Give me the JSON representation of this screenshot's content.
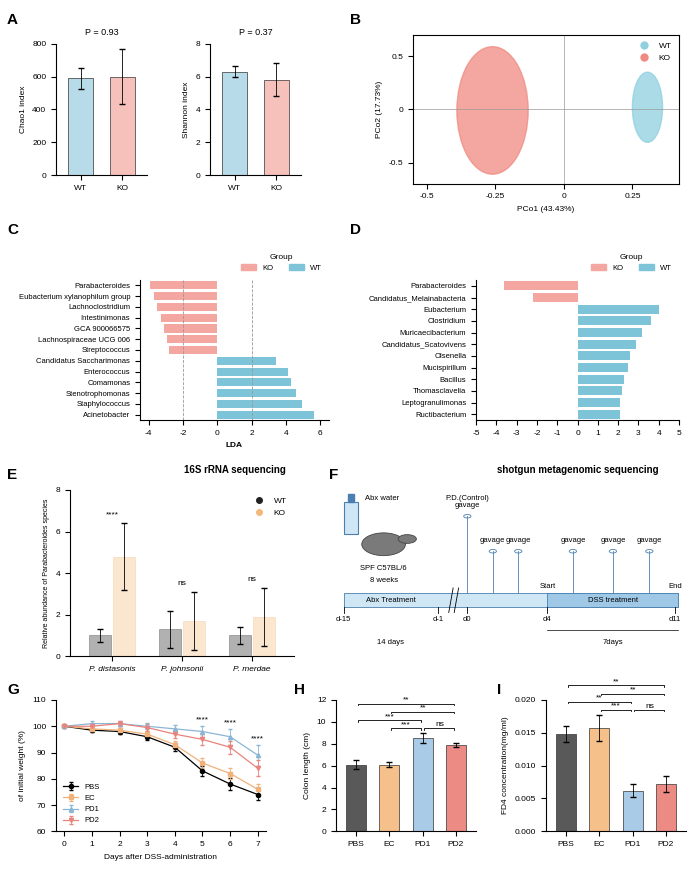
{
  "panel_labels": [
    "A",
    "B",
    "C",
    "D",
    "E",
    "F",
    "G",
    "H",
    "I"
  ],
  "chart_data": [
    {
      "type": "bar",
      "title": "P = 0.93",
      "ylabel": "Chao1 index",
      "categories": [
        "WT",
        "KO"
      ],
      "values": [
        590,
        600
      ],
      "errors": [
        65,
        170
      ],
      "colors": [
        "#b7dbe8",
        "#f6c1bb"
      ],
      "ylim": [
        0,
        800
      ],
      "yticks": [
        0,
        200,
        400,
        600,
        800
      ]
    },
    {
      "type": "bar",
      "title": "P = 0.37",
      "ylabel": "Shannon index",
      "categories": [
        "WT",
        "KO"
      ],
      "values": [
        6.3,
        5.8
      ],
      "errors": [
        0.35,
        1.0
      ],
      "colors": [
        "#b7dbe8",
        "#f6c1bb"
      ],
      "ylim": [
        0,
        8
      ],
      "yticks": [
        0,
        2,
        4,
        6,
        8
      ]
    },
    {
      "type": "ellipse",
      "xlabel": "PCo1 (43.43%)",
      "ylabel": "PCo2 (17.73%)",
      "series": [
        {
          "name": "WT",
          "color": "#8ecfe0",
          "center": [
            0.305,
            0.02
          ],
          "width": 0.11,
          "height": 0.66
        },
        {
          "name": "KO",
          "color": "#f08a80",
          "center": [
            -0.26,
            -0.01
          ],
          "width": 0.26,
          "height": 1.2
        }
      ],
      "xlim": [
        -0.55,
        0.42
      ],
      "ylim": [
        -0.7,
        0.7
      ],
      "xticks": [
        -0.5,
        -0.25,
        0,
        0.25
      ],
      "yticks": [
        -0.5,
        0,
        0.5
      ],
      "legend": "upper right"
    },
    {
      "type": "bar",
      "orientation": "horizontal",
      "xlabel": "LDA",
      "caption": "16S rRNA sequencing",
      "legend_title": "Group",
      "legend": "upper right",
      "categories": [
        "Parabacteroides",
        "Eubacterium xylanophilum group",
        "Lachnoclostridium",
        "Intestinimonas",
        "GCA 900066575",
        "Lachnospiraceae UCG 006",
        "Streptococcus",
        "Candidatus Saccharimonas",
        "Enterococcus",
        "Comamonas",
        "Stenotrophomonas",
        "Staphylococcus",
        "Acinetobacter"
      ],
      "series": [
        {
          "name": "KO",
          "color": "#f4a6a0",
          "values": [
            -3.9,
            -3.7,
            -3.5,
            -3.3,
            -3.1,
            -2.9,
            -2.8,
            null,
            null,
            null,
            null,
            null,
            null
          ]
        },
        {
          "name": "WT",
          "color": "#7ec4d8",
          "values": [
            null,
            null,
            null,
            null,
            null,
            null,
            null,
            3.4,
            4.1,
            4.3,
            4.6,
            4.9,
            5.6
          ]
        }
      ],
      "thresholds": [
        -2,
        2
      ],
      "xlim": [
        -4.5,
        6.5
      ],
      "xticks": [
        -4,
        -2,
        0,
        2,
        4,
        6
      ]
    },
    {
      "type": "bar",
      "orientation": "horizontal",
      "caption": "shotgun metagenomic sequencing",
      "legend_title": "Group",
      "legend": "upper right",
      "categories": [
        "Parabacteroides",
        "Candidatus_Melainabacteria",
        "Eubacterium",
        "Clostridium",
        "Muricaecibacterium",
        "Candidatus_Scatovivens",
        "Olsenella",
        "Mucispirillum",
        "Bacillus",
        "Thomasclavelia",
        "Leptogranulimonas",
        "Ructibacterium"
      ],
      "series": [
        {
          "name": "KO",
          "color": "#f4a6a0",
          "values": [
            -3.6,
            -2.2,
            null,
            null,
            null,
            null,
            null,
            null,
            null,
            null,
            null,
            null
          ]
        },
        {
          "name": "WT",
          "color": "#7ec4d8",
          "values": [
            null,
            null,
            4.0,
            3.6,
            3.2,
            2.9,
            2.6,
            2.5,
            2.3,
            2.2,
            2.1,
            2.1
          ]
        }
      ],
      "xlim": [
        -5,
        5
      ],
      "xticks": [
        -5,
        -4,
        -3,
        -2,
        -1,
        0,
        1,
        2,
        3,
        4,
        5
      ]
    },
    {
      "type": "grouped_bar",
      "ylabel": "Relative abundance of Parabacteroides species",
      "categories": [
        "P. distasonis",
        "P. johnsonii",
        "P. merdae"
      ],
      "series": [
        {
          "name": "WT",
          "color": "#222222",
          "values": [
            1.0,
            1.3,
            1.0
          ],
          "errors": [
            0.3,
            0.9,
            0.4
          ]
        },
        {
          "name": "KO",
          "color": "#f5b87a",
          "values": [
            4.8,
            1.7,
            1.9
          ],
          "errors": [
            1.6,
            1.4,
            1.4
          ]
        }
      ],
      "significance": [
        "****",
        "ns",
        "ns"
      ],
      "ylim": [
        0,
        8
      ],
      "yticks": [
        0,
        2,
        4,
        6,
        8
      ],
      "legend": "upper right"
    },
    {
      "type": "line",
      "xlabel": "Days after DSS-administration",
      "ylabel": "of initial weight (%)",
      "x": [
        0,
        1,
        2,
        3,
        4,
        5,
        6,
        7
      ],
      "series": [
        {
          "name": "PBS",
          "color": "#000000",
          "marker": "circle",
          "line_style": "solid",
          "values": [
            100,
            98.5,
            98,
            96,
            92,
            83,
            78,
            74
          ],
          "errors": [
            0,
            0.8,
            1,
            1.2,
            1.5,
            1.8,
            2.2,
            2
          ]
        },
        {
          "name": "EC",
          "color": "#f0b27a",
          "marker": "square",
          "line_style": "solid",
          "values": [
            100,
            99,
            98.5,
            97,
            93,
            86,
            82,
            76
          ],
          "errors": [
            0,
            0.8,
            1,
            1.2,
            1.5,
            1.8,
            2.2,
            2
          ]
        },
        {
          "name": "PD1",
          "color": "#8ab6d6",
          "marker": "triangle_up",
          "line_style": "solid",
          "values": [
            100,
            101,
            101,
            100,
            99,
            98,
            96,
            89
          ],
          "errors": [
            0,
            1,
            1,
            1.2,
            1.5,
            2,
            3,
            4
          ]
        },
        {
          "name": "PD2",
          "color": "#e8847c",
          "marker": "triangle_down",
          "line_style": "solid",
          "values": [
            100,
            100,
            101,
            99.5,
            97,
            95,
            92,
            84
          ],
          "errors": [
            0,
            1,
            1,
            1.2,
            1.5,
            2,
            2.5,
            3
          ]
        }
      ],
      "annotations": [
        {
          "x": 5,
          "label": "****"
        },
        {
          "x": 6,
          "label": "****"
        },
        {
          "x": 7,
          "label": "****"
        }
      ],
      "xlim": [
        -0.3,
        7.3
      ],
      "xticks": [
        0,
        1,
        2,
        3,
        4,
        5,
        6,
        7
      ],
      "ylim": [
        60,
        110
      ],
      "yticks": [
        60,
        70,
        80,
        90,
        100,
        110
      ],
      "legend": "lower left"
    },
    {
      "type": "bar",
      "ylabel": "Colon length (cm)",
      "categories": [
        "PBS",
        "EC",
        "PD1",
        "PD2"
      ],
      "values": [
        6.1,
        6.1,
        8.5,
        7.9
      ],
      "errors": [
        0.4,
        0.25,
        0.45,
        0.2
      ],
      "colors": [
        "#595959",
        "#f6c08a",
        "#a9cbe8",
        "#ec8a84"
      ],
      "ylim": [
        0,
        12
      ],
      "yticks": [
        0,
        2,
        4,
        6,
        8,
        10,
        12
      ],
      "significance": [
        {
          "between": [
            "EC",
            "PD1"
          ],
          "label": "***"
        },
        {
          "between": [
            "PD1",
            "PD2"
          ],
          "label": "ns"
        },
        {
          "between": [
            "PBS",
            "PD1"
          ],
          "label": "***"
        },
        {
          "between": [
            "EC",
            "PD2"
          ],
          "label": "**"
        },
        {
          "between": [
            "PBS",
            "PD2"
          ],
          "label": "**"
        }
      ]
    },
    {
      "type": "bar",
      "ylabel": "FD4 concentration(mg/ml)",
      "categories": [
        "PBS",
        "EC",
        "PD1",
        "PD2"
      ],
      "values": [
        0.0148,
        0.0157,
        0.0062,
        0.0072
      ],
      "errors": [
        0.0012,
        0.002,
        0.001,
        0.0012
      ],
      "colors": [
        "#595959",
        "#f6c08a",
        "#a9cbe8",
        "#ec8a84"
      ],
      "ylim": [
        0,
        0.02
      ],
      "yticks": [
        {
          "value": 0,
          "label": "0.000"
        },
        {
          "value": 0.005,
          "label": "0.005"
        },
        {
          "value": 0.01,
          "label": "0.010"
        },
        {
          "value": 0.015,
          "label": "0.015"
        },
        {
          "value": 0.02,
          "label": "0.020"
        }
      ],
      "significance": [
        {
          "between": [
            "EC",
            "PD1"
          ],
          "label": "***"
        },
        {
          "between": [
            "PD1",
            "PD2"
          ],
          "label": "ns"
        },
        {
          "between": [
            "PBS",
            "PD1"
          ],
          "label": "**"
        },
        {
          "between": [
            "EC",
            "PD2"
          ],
          "label": "**"
        },
        {
          "between": [
            "PBS",
            "PD2"
          ],
          "label": "**"
        }
      ]
    }
  ],
  "diagram": {
    "bottle_label": "Abx water",
    "mouse_label": "SPF C57BL/6",
    "age": "8 weeks",
    "gavages": [
      "P.D.(Control)\ngavage",
      "gavage",
      "gavage",
      "gavage",
      "gavage",
      "gavage"
    ],
    "phases": [
      {
        "label": "Abx Treatment",
        "duration": "14 days"
      },
      {
        "label": "DSS treatment",
        "duration": "7days"
      }
    ],
    "days": [
      "d-15",
      "d-1",
      "d0",
      "d4",
      "d11"
    ],
    "milestones": [
      "Start",
      "End"
    ]
  }
}
